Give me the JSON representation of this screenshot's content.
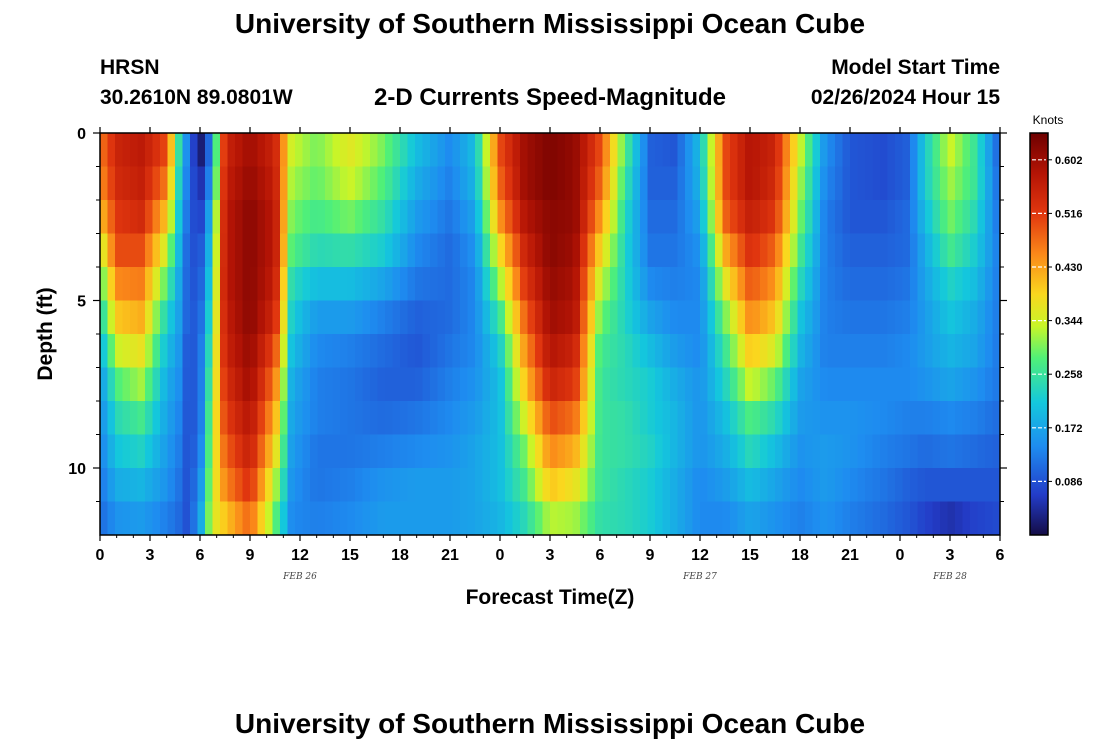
{
  "header": {
    "title": "University of Southern Mississippi Ocean Cube",
    "station_name": "HRSN",
    "coordinates": "30.2610N  89.0801W",
    "subtitle": "2-D Currents Speed-Magnitude",
    "model_start_label": "Model Start Time",
    "model_start_value": "02/26/2024 Hour 15"
  },
  "footer": {
    "title": "University of Southern Mississippi Ocean Cube"
  },
  "chart_data": {
    "type": "heatmap",
    "title": "2-D Currents Speed-Magnitude",
    "xlabel": "Forecast Time(Z)",
    "ylabel": "Depth (ft)",
    "x_range_hours": [
      0,
      54
    ],
    "y_range_ft": [
      0,
      12
    ],
    "y_reversed": true,
    "x_tick_labels": [
      "0",
      "3",
      "6",
      "9",
      "12",
      "15",
      "18",
      "21",
      "0",
      "3",
      "6",
      "9",
      "12",
      "15",
      "18",
      "21",
      "0",
      "3",
      "6"
    ],
    "y_tick_labels": [
      "0",
      "5",
      "10"
    ],
    "y_tick_values": [
      0,
      5,
      10
    ],
    "date_labels": [
      {
        "text": "FEB 26",
        "hour": 12
      },
      {
        "text": "FEB 27",
        "hour": 36
      },
      {
        "text": "FEB 28",
        "hour": 51
      }
    ],
    "colorbar": {
      "units": "Knots",
      "min": 0.0,
      "max": 0.645,
      "ticks": [
        "0.086",
        "0.172",
        "0.258",
        "0.344",
        "0.430",
        "0.516",
        "0.602"
      ],
      "tick_values": [
        0.086,
        0.172,
        0.258,
        0.344,
        0.43,
        0.516,
        0.602
      ]
    },
    "depth_levels_ft": [
      0.5,
      1.5,
      2.5,
      3.5,
      4.5,
      5.5,
      6.5,
      7.5,
      8.5,
      9.5,
      10.5,
      11.5
    ],
    "speed_knots_profiles": [
      {
        "hour": 0.0,
        "values": [
          0.46,
          0.44,
          0.4,
          0.33,
          0.27,
          0.22,
          0.18,
          0.15,
          0.14,
          0.13,
          0.12,
          0.11
        ]
      },
      {
        "hour": 1.0,
        "values": [
          0.55,
          0.54,
          0.52,
          0.5,
          0.45,
          0.4,
          0.34,
          0.28,
          0.24,
          0.21,
          0.18,
          0.15
        ]
      },
      {
        "hour": 2.5,
        "values": [
          0.57,
          0.56,
          0.54,
          0.5,
          0.46,
          0.42,
          0.37,
          0.32,
          0.27,
          0.23,
          0.19,
          0.16
        ]
      },
      {
        "hour": 4.0,
        "values": [
          0.5,
          0.46,
          0.4,
          0.34,
          0.28,
          0.23,
          0.2,
          0.18,
          0.17,
          0.16,
          0.15,
          0.13
        ]
      },
      {
        "hour": 4.7,
        "values": [
          0.26,
          0.24,
          0.22,
          0.2,
          0.18,
          0.17,
          0.16,
          0.15,
          0.14,
          0.13,
          0.12,
          0.11
        ]
      },
      {
        "hour": 5.3,
        "values": [
          0.12,
          0.11,
          0.1,
          0.09,
          0.09,
          0.09,
          0.08,
          0.08,
          0.08,
          0.08,
          0.08,
          0.08
        ]
      },
      {
        "hour": 6.0,
        "values": [
          0.01,
          0.04,
          0.06,
          0.08,
          0.09,
          0.1,
          0.11,
          0.11,
          0.11,
          0.12,
          0.14,
          0.16
        ]
      },
      {
        "hour": 6.7,
        "values": [
          0.14,
          0.16,
          0.2,
          0.22,
          0.24,
          0.26,
          0.28,
          0.3,
          0.32,
          0.33,
          0.34,
          0.35
        ]
      },
      {
        "hour": 7.5,
        "values": [
          0.55,
          0.56,
          0.57,
          0.57,
          0.57,
          0.56,
          0.55,
          0.53,
          0.51,
          0.48,
          0.45,
          0.4
        ]
      },
      {
        "hour": 9.0,
        "values": [
          0.6,
          0.61,
          0.62,
          0.62,
          0.62,
          0.62,
          0.61,
          0.6,
          0.58,
          0.56,
          0.53,
          0.48
        ]
      },
      {
        "hour": 10.5,
        "values": [
          0.55,
          0.56,
          0.57,
          0.57,
          0.56,
          0.54,
          0.5,
          0.46,
          0.42,
          0.38,
          0.33,
          0.29
        ]
      },
      {
        "hour": 11.5,
        "values": [
          0.34,
          0.32,
          0.3,
          0.28,
          0.24,
          0.22,
          0.2,
          0.18,
          0.17,
          0.16,
          0.15,
          0.14
        ]
      },
      {
        "hour": 13.0,
        "values": [
          0.3,
          0.29,
          0.27,
          0.24,
          0.2,
          0.16,
          0.14,
          0.13,
          0.13,
          0.12,
          0.12,
          0.13
        ]
      },
      {
        "hour": 15.0,
        "values": [
          0.36,
          0.34,
          0.3,
          0.25,
          0.2,
          0.16,
          0.13,
          0.12,
          0.12,
          0.12,
          0.13,
          0.14
        ]
      },
      {
        "hour": 17.0,
        "values": [
          0.3,
          0.28,
          0.25,
          0.22,
          0.17,
          0.13,
          0.11,
          0.1,
          0.11,
          0.13,
          0.15,
          0.16
        ]
      },
      {
        "hour": 19.0,
        "values": [
          0.2,
          0.18,
          0.16,
          0.14,
          0.12,
          0.1,
          0.09,
          0.1,
          0.12,
          0.14,
          0.16,
          0.16
        ]
      },
      {
        "hour": 21.0,
        "values": [
          0.14,
          0.13,
          0.12,
          0.11,
          0.11,
          0.11,
          0.12,
          0.13,
          0.14,
          0.15,
          0.16,
          0.16
        ]
      },
      {
        "hour": 22.5,
        "values": [
          0.2,
          0.19,
          0.17,
          0.15,
          0.14,
          0.14,
          0.14,
          0.15,
          0.16,
          0.17,
          0.17,
          0.17
        ]
      },
      {
        "hour": 24.0,
        "values": [
          0.5,
          0.48,
          0.44,
          0.38,
          0.32,
          0.26,
          0.22,
          0.2,
          0.2,
          0.2,
          0.2,
          0.19
        ]
      },
      {
        "hour": 25.5,
        "values": [
          0.6,
          0.6,
          0.58,
          0.55,
          0.52,
          0.48,
          0.44,
          0.4,
          0.35,
          0.3,
          0.27,
          0.24
        ]
      },
      {
        "hour": 27.0,
        "values": [
          0.63,
          0.63,
          0.62,
          0.62,
          0.61,
          0.6,
          0.58,
          0.55,
          0.5,
          0.45,
          0.4,
          0.33
        ]
      },
      {
        "hour": 28.5,
        "values": [
          0.61,
          0.61,
          0.61,
          0.6,
          0.59,
          0.58,
          0.55,
          0.52,
          0.47,
          0.42,
          0.37,
          0.32
        ]
      },
      {
        "hour": 30.0,
        "values": [
          0.5,
          0.48,
          0.44,
          0.39,
          0.34,
          0.3,
          0.27,
          0.26,
          0.26,
          0.26,
          0.26,
          0.25
        ]
      },
      {
        "hour": 31.5,
        "values": [
          0.28,
          0.26,
          0.24,
          0.23,
          0.23,
          0.23,
          0.24,
          0.24,
          0.25,
          0.25,
          0.24,
          0.24
        ]
      },
      {
        "hour": 33.0,
        "values": [
          0.1,
          0.1,
          0.11,
          0.12,
          0.14,
          0.17,
          0.2,
          0.22,
          0.22,
          0.23,
          0.22,
          0.22
        ]
      },
      {
        "hour": 34.5,
        "values": [
          0.09,
          0.1,
          0.11,
          0.12,
          0.13,
          0.14,
          0.16,
          0.18,
          0.19,
          0.19,
          0.18,
          0.18
        ]
      },
      {
        "hour": 36.0,
        "values": [
          0.2,
          0.19,
          0.17,
          0.15,
          0.14,
          0.14,
          0.14,
          0.15,
          0.15,
          0.15,
          0.14,
          0.14
        ]
      },
      {
        "hour": 37.5,
        "values": [
          0.5,
          0.5,
          0.48,
          0.42,
          0.36,
          0.3,
          0.26,
          0.23,
          0.2,
          0.18,
          0.16,
          0.14
        ]
      },
      {
        "hour": 39.0,
        "values": [
          0.58,
          0.58,
          0.56,
          0.53,
          0.49,
          0.45,
          0.4,
          0.34,
          0.28,
          0.24,
          0.2,
          0.17
        ]
      },
      {
        "hour": 40.5,
        "values": [
          0.55,
          0.54,
          0.52,
          0.48,
          0.44,
          0.4,
          0.35,
          0.29,
          0.24,
          0.2,
          0.17,
          0.15
        ]
      },
      {
        "hour": 42.0,
        "values": [
          0.34,
          0.32,
          0.3,
          0.27,
          0.24,
          0.21,
          0.19,
          0.17,
          0.16,
          0.15,
          0.14,
          0.13
        ]
      },
      {
        "hour": 43.5,
        "values": [
          0.15,
          0.14,
          0.13,
          0.13,
          0.13,
          0.13,
          0.13,
          0.14,
          0.15,
          0.16,
          0.16,
          0.15
        ]
      },
      {
        "hour": 45.0,
        "values": [
          0.09,
          0.09,
          0.09,
          0.1,
          0.11,
          0.12,
          0.13,
          0.14,
          0.15,
          0.15,
          0.14,
          0.13
        ]
      },
      {
        "hour": 47.0,
        "values": [
          0.08,
          0.08,
          0.09,
          0.1,
          0.11,
          0.12,
          0.13,
          0.14,
          0.14,
          0.13,
          0.12,
          0.11
        ]
      },
      {
        "hour": 48.5,
        "values": [
          0.1,
          0.1,
          0.11,
          0.11,
          0.12,
          0.13,
          0.14,
          0.14,
          0.13,
          0.12,
          0.1,
          0.09
        ]
      },
      {
        "hour": 49.5,
        "values": [
          0.22,
          0.22,
          0.2,
          0.18,
          0.17,
          0.16,
          0.16,
          0.15,
          0.13,
          0.11,
          0.09,
          0.07
        ]
      },
      {
        "hour": 51.0,
        "values": [
          0.34,
          0.32,
          0.3,
          0.27,
          0.23,
          0.21,
          0.19,
          0.17,
          0.14,
          0.12,
          0.09,
          0.05
        ]
      },
      {
        "hour": 52.5,
        "values": [
          0.26,
          0.26,
          0.24,
          0.22,
          0.2,
          0.18,
          0.17,
          0.15,
          0.13,
          0.11,
          0.09,
          0.07
        ]
      },
      {
        "hour": 54.0,
        "values": [
          0.09,
          0.1,
          0.11,
          0.12,
          0.12,
          0.12,
          0.12,
          0.12,
          0.11,
          0.1,
          0.09,
          0.08
        ]
      }
    ]
  }
}
